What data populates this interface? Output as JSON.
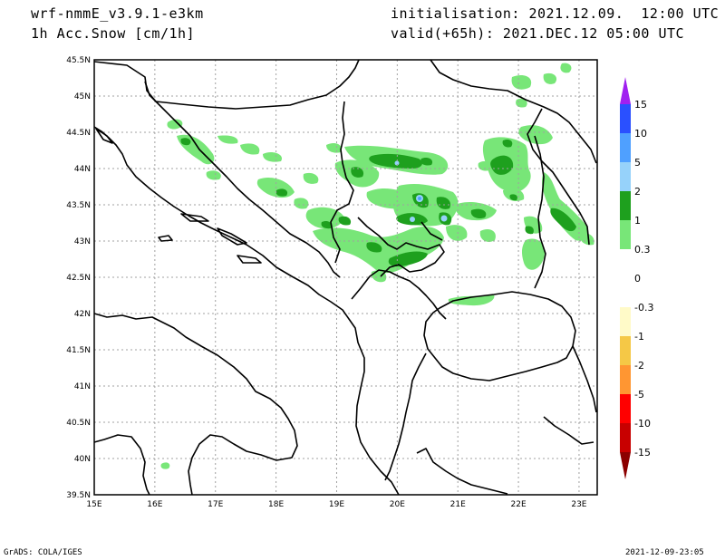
{
  "header": {
    "model": "wrf-nmmE_v3.9.1-e3km",
    "field": "1h Acc.Snow [cm/1h]",
    "initialisation": "initialisation: 2021.12.09.  12:00 UTC",
    "valid": "valid(+65h): 2021.DEC.12 05:00 UTC"
  },
  "footer": {
    "credit": "GrADS: COLA/IGES",
    "timestamp": "2021-12-09-23:05"
  },
  "axes": {
    "lon_labels": [
      "15E",
      "16E",
      "17E",
      "18E",
      "19E",
      "20E",
      "21E",
      "22E",
      "23E"
    ],
    "lat_labels": [
      "45.5N",
      "45N",
      "44.5N",
      "44N",
      "43.5N",
      "43N",
      "42.5N",
      "42N",
      "41.5N",
      "41N",
      "40.5N",
      "40N",
      "39.5N"
    ]
  },
  "colorbar": {
    "labels": [
      "15",
      "10",
      "5",
      "2",
      "1",
      "0.3",
      "0",
      "-0.3",
      "-1",
      "-2",
      "-5",
      "-10",
      "-15"
    ],
    "colors": {
      "purple": "#a020f0",
      "blue": "#2a50ff",
      "mid_blue": "#4fa0ff",
      "light_blue": "#96d2fa",
      "green_dark": "#1ea01e",
      "green_light": "#78e678",
      "white": "#ffffff",
      "cream": "#fffac8",
      "yellow": "#f5c846",
      "orange": "#ff9632",
      "red": "#ff0000",
      "dark_red": "#c80000",
      "maroon": "#8c0000"
    }
  }
}
